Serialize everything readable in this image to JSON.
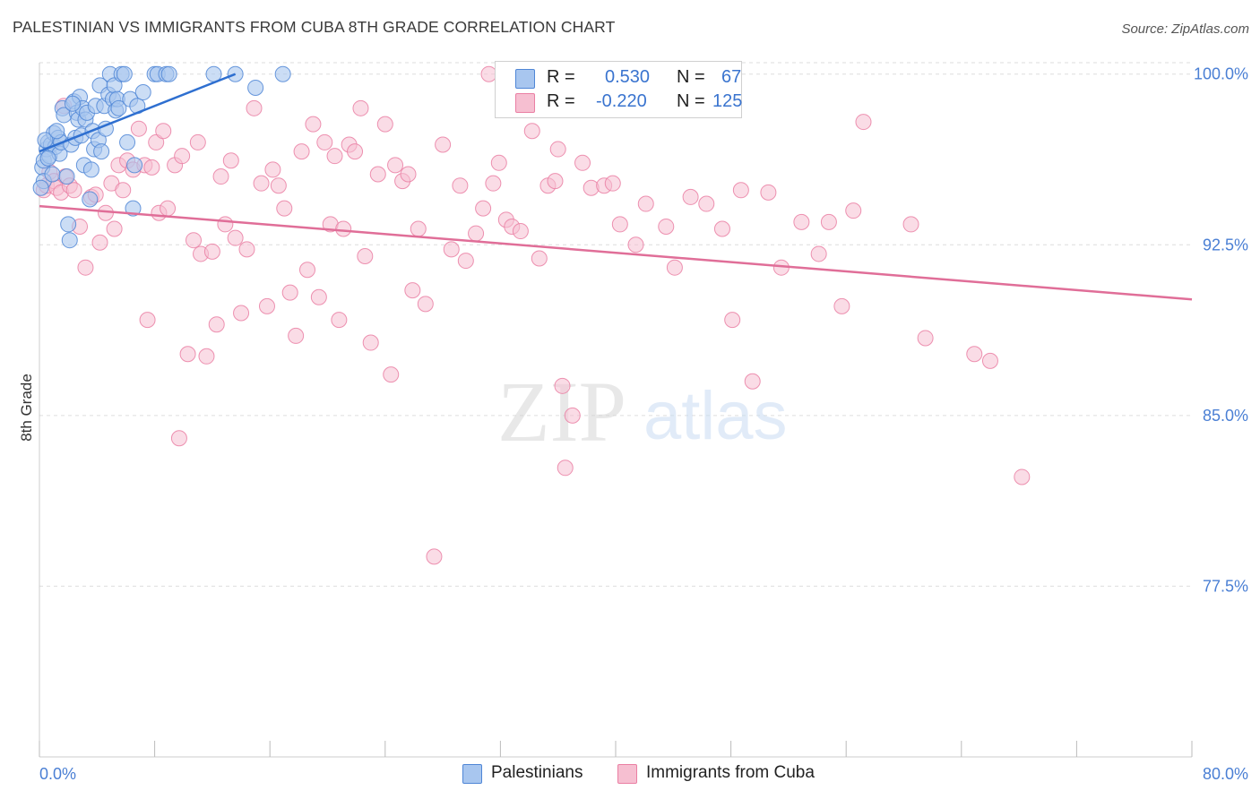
{
  "title": "PALESTINIAN VS IMMIGRANTS FROM CUBA 8TH GRADE CORRELATION CHART",
  "source": "Source: ZipAtlas.com",
  "watermark": {
    "zip": "ZIP",
    "atlas": "atlas"
  },
  "legend": {
    "r_label": "R =",
    "n_label": "N =",
    "rows": [
      {
        "r": "0.530",
        "n": "67"
      },
      {
        "r": "-0.220",
        "n": "125"
      }
    ]
  },
  "colors": {
    "blue_fill": "#a8c6ef",
    "blue_stroke": "#4f86d6",
    "blue_line": "#2e6fd0",
    "pink_fill": "#f6bfd1",
    "pink_stroke": "#ea7fa3",
    "pink_line": "#e06e98",
    "axis_text": "#4a7fd4",
    "grid": "#dddddd"
  },
  "chart_data": {
    "type": "scatter",
    "title": "PALESTINIAN VS IMMIGRANTS FROM CUBA 8TH GRADE CORRELATION CHART",
    "xlabel": "",
    "ylabel": "8th Grade",
    "xlim": [
      0,
      80
    ],
    "ylim": [
      70.0,
      100.5
    ],
    "x_tick_labels": [
      "0.0%",
      "80.0%"
    ],
    "y_ticks": [
      77.5,
      85.0,
      92.5,
      100.0
    ],
    "y_tick_labels": [
      "77.5%",
      "85.0%",
      "92.5%",
      "100.0%"
    ],
    "grid": true,
    "legend_position": "top-center",
    "series": [
      {
        "name": "Palestinians",
        "r": 0.53,
        "n": 67,
        "trend": {
          "x": [
            0.0,
            13.6
          ],
          "y": [
            96.6,
            100.0
          ]
        },
        "points": [
          [
            0.2,
            95.9
          ],
          [
            0.3,
            96.2
          ],
          [
            0.3,
            95.3
          ],
          [
            0.5,
            96.7
          ],
          [
            0.6,
            97.0
          ],
          [
            0.7,
            96.4
          ],
          [
            0.8,
            96.9
          ],
          [
            0.9,
            95.6
          ],
          [
            1.0,
            97.4
          ],
          [
            1.1,
            96.8
          ],
          [
            1.3,
            97.2
          ],
          [
            1.4,
            96.5
          ],
          [
            1.5,
            97.0
          ],
          [
            1.6,
            98.5
          ],
          [
            1.7,
            98.2
          ],
          [
            1.9,
            95.5
          ],
          [
            2.0,
            93.4
          ],
          [
            2.1,
            92.7
          ],
          [
            2.2,
            96.9
          ],
          [
            2.4,
            98.8
          ],
          [
            2.5,
            97.2
          ],
          [
            2.6,
            98.3
          ],
          [
            2.7,
            98.0
          ],
          [
            2.8,
            99.0
          ],
          [
            2.9,
            97.3
          ],
          [
            3.0,
            98.5
          ],
          [
            3.1,
            96.0
          ],
          [
            3.2,
            98.0
          ],
          [
            3.3,
            98.3
          ],
          [
            3.5,
            94.5
          ],
          [
            3.6,
            95.8
          ],
          [
            3.7,
            97.5
          ],
          [
            3.8,
            96.7
          ],
          [
            3.9,
            98.6
          ],
          [
            4.1,
            97.1
          ],
          [
            4.2,
            99.5
          ],
          [
            4.3,
            96.6
          ],
          [
            4.5,
            98.6
          ],
          [
            4.6,
            97.6
          ],
          [
            4.8,
            99.1
          ],
          [
            4.9,
            100.0
          ],
          [
            5.1,
            98.9
          ],
          [
            5.2,
            99.5
          ],
          [
            5.3,
            98.4
          ],
          [
            5.4,
            98.9
          ],
          [
            5.5,
            98.5
          ],
          [
            5.7,
            100.0
          ],
          [
            5.9,
            100.0
          ],
          [
            6.1,
            97.0
          ],
          [
            6.3,
            98.9
          ],
          [
            6.5,
            94.1
          ],
          [
            6.6,
            96.0
          ],
          [
            6.8,
            98.6
          ],
          [
            7.2,
            99.2
          ],
          [
            8.0,
            100.0
          ],
          [
            8.2,
            100.0
          ],
          [
            8.8,
            100.0
          ],
          [
            9.0,
            100.0
          ],
          [
            12.1,
            100.0
          ],
          [
            13.6,
            100.0
          ],
          [
            15.0,
            99.4
          ],
          [
            16.9,
            100.0
          ],
          [
            0.1,
            95.0
          ],
          [
            0.4,
            97.1
          ],
          [
            1.2,
            97.5
          ],
          [
            2.3,
            98.7
          ],
          [
            0.6,
            96.3
          ]
        ]
      },
      {
        "name": "Immigrants from Cuba",
        "r": -0.22,
        "n": 125,
        "trend": {
          "x": [
            0.0,
            80.0
          ],
          "y": [
            94.2,
            90.1
          ]
        },
        "points": [
          [
            0.3,
            94.9
          ],
          [
            0.5,
            95.1
          ],
          [
            0.7,
            95.7
          ],
          [
            1.0,
            95.3
          ],
          [
            1.2,
            95.0
          ],
          [
            1.5,
            94.8
          ],
          [
            1.8,
            95.5
          ],
          [
            2.1,
            95.1
          ],
          [
            2.4,
            94.9
          ],
          [
            2.8,
            93.3
          ],
          [
            3.2,
            91.5
          ],
          [
            3.6,
            94.6
          ],
          [
            3.9,
            94.7
          ],
          [
            4.2,
            92.6
          ],
          [
            4.6,
            93.9
          ],
          [
            5.0,
            95.2
          ],
          [
            5.2,
            93.2
          ],
          [
            5.5,
            96.0
          ],
          [
            5.8,
            94.9
          ],
          [
            6.1,
            96.2
          ],
          [
            6.5,
            95.8
          ],
          [
            6.9,
            97.6
          ],
          [
            7.3,
            96.0
          ],
          [
            7.5,
            89.2
          ],
          [
            7.8,
            95.9
          ],
          [
            8.1,
            97.0
          ],
          [
            8.3,
            93.9
          ],
          [
            8.6,
            97.5
          ],
          [
            8.9,
            94.1
          ],
          [
            9.4,
            96.0
          ],
          [
            9.7,
            84.0
          ],
          [
            9.9,
            96.4
          ],
          [
            10.3,
            87.7
          ],
          [
            10.7,
            92.7
          ],
          [
            11.0,
            97.0
          ],
          [
            11.2,
            92.1
          ],
          [
            11.6,
            87.6
          ],
          [
            12.0,
            92.2
          ],
          [
            12.3,
            89.0
          ],
          [
            12.6,
            95.5
          ],
          [
            12.9,
            93.4
          ],
          [
            13.3,
            96.2
          ],
          [
            13.6,
            92.8
          ],
          [
            14.0,
            89.5
          ],
          [
            14.4,
            92.3
          ],
          [
            14.9,
            98.5
          ],
          [
            15.4,
            95.2
          ],
          [
            15.8,
            89.8
          ],
          [
            16.2,
            95.8
          ],
          [
            16.6,
            95.1
          ],
          [
            17.0,
            94.1
          ],
          [
            17.4,
            90.4
          ],
          [
            17.8,
            88.5
          ],
          [
            18.2,
            96.6
          ],
          [
            18.6,
            91.4
          ],
          [
            19.0,
            97.8
          ],
          [
            19.4,
            90.2
          ],
          [
            19.8,
            97.0
          ],
          [
            20.2,
            93.4
          ],
          [
            20.5,
            96.4
          ],
          [
            20.8,
            89.2
          ],
          [
            21.1,
            93.2
          ],
          [
            21.5,
            96.9
          ],
          [
            21.9,
            96.6
          ],
          [
            22.3,
            98.5
          ],
          [
            22.6,
            92.0
          ],
          [
            23.0,
            88.2
          ],
          [
            23.5,
            95.6
          ],
          [
            24.0,
            97.8
          ],
          [
            24.4,
            86.8
          ],
          [
            24.7,
            96.0
          ],
          [
            25.2,
            95.3
          ],
          [
            25.6,
            95.6
          ],
          [
            25.9,
            90.5
          ],
          [
            26.3,
            93.2
          ],
          [
            26.8,
            89.9
          ],
          [
            27.4,
            78.8
          ],
          [
            28.0,
            96.9
          ],
          [
            28.6,
            92.3
          ],
          [
            29.2,
            95.1
          ],
          [
            29.6,
            91.8
          ],
          [
            30.3,
            93.0
          ],
          [
            30.8,
            94.1
          ],
          [
            31.2,
            100.0
          ],
          [
            31.5,
            95.2
          ],
          [
            31.9,
            96.1
          ],
          [
            32.4,
            93.6
          ],
          [
            32.8,
            93.3
          ],
          [
            33.4,
            93.1
          ],
          [
            34.2,
            97.5
          ],
          [
            34.7,
            91.9
          ],
          [
            35.3,
            95.1
          ],
          [
            35.8,
            95.3
          ],
          [
            36.3,
            86.3
          ],
          [
            36.5,
            82.7
          ],
          [
            37.0,
            85.0
          ],
          [
            37.7,
            96.1
          ],
          [
            38.3,
            95.0
          ],
          [
            39.2,
            95.1
          ],
          [
            39.8,
            95.2
          ],
          [
            40.3,
            93.4
          ],
          [
            41.4,
            92.5
          ],
          [
            42.1,
            94.3
          ],
          [
            43.5,
            93.3
          ],
          [
            44.1,
            91.5
          ],
          [
            45.2,
            94.6
          ],
          [
            46.3,
            94.3
          ],
          [
            47.4,
            93.2
          ],
          [
            48.1,
            89.2
          ],
          [
            48.7,
            94.9
          ],
          [
            49.5,
            86.5
          ],
          [
            50.6,
            94.8
          ],
          [
            51.5,
            91.5
          ],
          [
            52.9,
            93.5
          ],
          [
            54.1,
            92.1
          ],
          [
            54.8,
            93.5
          ],
          [
            55.7,
            89.8
          ],
          [
            56.5,
            94.0
          ],
          [
            57.2,
            97.9
          ],
          [
            60.5,
            93.4
          ],
          [
            61.5,
            88.4
          ],
          [
            64.9,
            87.7
          ],
          [
            66.0,
            87.4
          ],
          [
            68.2,
            82.3
          ],
          [
            36.0,
            96.7
          ],
          [
            1.7,
            98.6
          ]
        ]
      }
    ]
  },
  "bottom_legend": [
    {
      "name": "Palestinians"
    },
    {
      "name": "Immigrants from Cuba"
    }
  ]
}
